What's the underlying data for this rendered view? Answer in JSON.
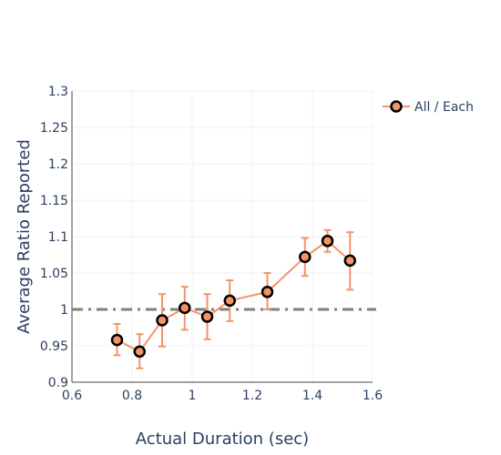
{
  "chart_data": {
    "type": "line",
    "xlabel": "Actual Duration (sec)",
    "ylabel": "Average Ratio Reported",
    "xlim": [
      0.6,
      1.6
    ],
    "ylim": [
      0.9,
      1.3
    ],
    "x_ticks": [
      0.6,
      0.8,
      1.0,
      1.2,
      1.4,
      1.6
    ],
    "x_tick_labels": [
      "0.6",
      "0.8",
      "1",
      "1.2",
      "1.4",
      "1.6"
    ],
    "y_ticks": [
      0.9,
      0.95,
      1.0,
      1.05,
      1.1,
      1.15,
      1.2,
      1.25,
      1.3
    ],
    "y_tick_labels": [
      "0.9",
      "0.95",
      "1",
      "1.05",
      "1.1",
      "1.15",
      "1.2",
      "1.25",
      "1.3"
    ],
    "grid": true,
    "legend_position": "top-right",
    "reference_line": {
      "y": 1.0,
      "style": "dash-dot",
      "color": "#808080"
    },
    "series": [
      {
        "name": "All / Each",
        "color": "#f4926a",
        "marker_fill": "#f4926a",
        "marker_edge": "#000000",
        "x": [
          0.75,
          0.825,
          0.9,
          0.975,
          1.05,
          1.125,
          1.25,
          1.375,
          1.45,
          1.525
        ],
        "y": [
          0.958,
          0.942,
          0.985,
          1.002,
          0.99,
          1.012,
          1.024,
          1.072,
          1.094,
          1.067
        ],
        "error_low": [
          0.937,
          0.919,
          0.949,
          0.972,
          0.959,
          0.984,
          1.0,
          1.046,
          1.079,
          1.027
        ],
        "error_high": [
          0.98,
          0.966,
          1.021,
          1.031,
          1.021,
          1.04,
          1.05,
          1.098,
          1.109,
          1.106
        ]
      }
    ]
  }
}
